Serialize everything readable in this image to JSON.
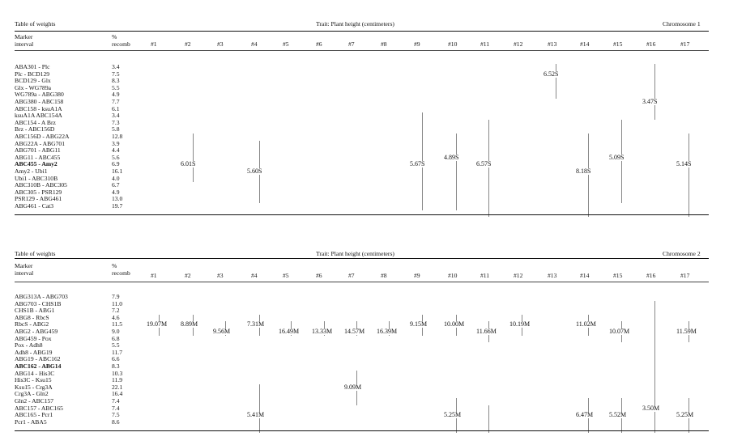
{
  "columns": [
    "#1",
    "#2",
    "#3",
    "#4",
    "#5",
    "#6",
    "#7",
    "#8",
    "#9",
    "#10",
    "#11",
    "#12",
    "#13",
    "#14",
    "#15",
    "#16",
    "#17"
  ],
  "tables": [
    {
      "title": "Table of weights",
      "trait": "Trait: Plant height (centimeters)",
      "chromosome": "Chromosome 1",
      "marker_header": [
        "Marker",
        "interval"
      ],
      "recomb_header": [
        "%",
        "recomb"
      ],
      "rows": [
        {
          "interval": "ABA301 - Plc",
          "recomb": "3.4",
          "bold": false
        },
        {
          "interval": "Plc - BCD129",
          "recomb": "7.5",
          "bold": false
        },
        {
          "interval": "BCD129 - Glx",
          "recomb": "8.3",
          "bold": false
        },
        {
          "interval": "Glx - WG789a",
          "recomb": "5.5",
          "bold": false
        },
        {
          "interval": "WG789a - ABG380",
          "recomb": "4.9",
          "bold": false
        },
        {
          "interval": "ABG380 - ABC158",
          "recomb": "7.7",
          "bold": false
        },
        {
          "interval": "ABC158 - ksuA1A",
          "recomb": "6.1",
          "bold": false
        },
        {
          "interval": "ksuA1A ABC154A",
          "recomb": "3.4",
          "bold": false
        },
        {
          "interval": "ABC154 - A Brz",
          "recomb": "7.3",
          "bold": false
        },
        {
          "interval": "Brz - ABC156D",
          "recomb": "5.8",
          "bold": false
        },
        {
          "interval": "ABC156D - ABG22A",
          "recomb": "12.8",
          "bold": false
        },
        {
          "interval": "ABG22A - ABG701",
          "recomb": "3.9",
          "bold": false
        },
        {
          "interval": "ABG701 - ABG11",
          "recomb": "4.4",
          "bold": false
        },
        {
          "interval": "ABG11 - ABC455",
          "recomb": "5.6",
          "bold": false
        },
        {
          "interval": "ABC455 - Amy2",
          "recomb": "6.9",
          "bold": true
        },
        {
          "interval": "Amy2 - Ubi1",
          "recomb": "16.1",
          "bold": false
        },
        {
          "interval": "Ubi1 - ABC310B",
          "recomb": "4.0",
          "bold": false
        },
        {
          "interval": "ABC310B - ABC305",
          "recomb": "6.7",
          "bold": false
        },
        {
          "interval": "ABC305 - PSR129",
          "recomb": "4.9",
          "bold": false
        },
        {
          "interval": "PSR129 - ABG461",
          "recomb": "13.0",
          "bold": false
        },
        {
          "interval": "ABG461 - Cat3",
          "recomb": "19.7",
          "bold": false
        }
      ],
      "entries": [
        {
          "col": 2,
          "row": 14,
          "label": "6.01S",
          "line_from": 10,
          "line_to": 16
        },
        {
          "col": 4,
          "row": 15,
          "label": "5.60S",
          "line_from": 11,
          "line_to": 19
        },
        {
          "col": 9,
          "row": 14,
          "label": "5.67S",
          "line_from": 7,
          "line_to": 20
        },
        {
          "col": 10,
          "row": 13,
          "label": "4.89S",
          "line_from": 10,
          "line_to": 20
        },
        {
          "col": 11,
          "row": 14,
          "label": "6.57S",
          "line_from": 8,
          "line_to": 21
        },
        {
          "col": 13,
          "row": 1,
          "label": "6.52S",
          "line_from": 0,
          "line_to": 4
        },
        {
          "col": 14,
          "row": 15,
          "label": "8.18S",
          "line_from": 10,
          "line_to": 21
        },
        {
          "col": 15,
          "row": 13,
          "label": "5.09S",
          "line_from": 8,
          "line_to": 19
        },
        {
          "col": 16,
          "row": 5,
          "label": "3.47S",
          "line_from": 0,
          "line_to": 7
        },
        {
          "col": 17,
          "row": 14,
          "label": "5.14S",
          "line_from": 10,
          "line_to": 21
        }
      ]
    },
    {
      "title": "Table of weights",
      "trait": "Trait: Plant height (centimeters)",
      "chromosome": "Chromosome 2",
      "marker_header": [
        "Marker",
        "interval"
      ],
      "recomb_header": [
        "%",
        "recomb"
      ],
      "rows": [
        {
          "interval": "ABG313A - ABG703",
          "recomb": "7.9",
          "bold": false
        },
        {
          "interval": "ABG703 - CHS1B",
          "recomb": "11.0",
          "bold": false
        },
        {
          "interval": "CHS1B - ABG1",
          "recomb": "7.2",
          "bold": false
        },
        {
          "interval": "ABG8 - RbcS",
          "recomb": "4.6",
          "bold": false
        },
        {
          "interval": "RbcS - ABG2",
          "recomb": "11.5",
          "bold": false
        },
        {
          "interval": "ABG2 - ABG459",
          "recomb": "9.0",
          "bold": false
        },
        {
          "interval": "ABG459 - Pox",
          "recomb": "6.8",
          "bold": false
        },
        {
          "interval": "Pox - Adh8",
          "recomb": "5.5",
          "bold": false
        },
        {
          "interval": "Adh8 - ABG19",
          "recomb": "11.7",
          "bold": false
        },
        {
          "interval": "ABG19 - ABC162",
          "recomb": "6.6",
          "bold": false
        },
        {
          "interval": "ABC162 - ABG14",
          "recomb": "8.3",
          "bold": true
        },
        {
          "interval": "ABG14 - His3C",
          "recomb": "10.3",
          "bold": false
        },
        {
          "interval": "His3C - Ksu15",
          "recomb": "11.9",
          "bold": false
        },
        {
          "interval": "Ksu15 - Crg3A",
          "recomb": "22.1",
          "bold": false
        },
        {
          "interval": "Crg3A - Gln2",
          "recomb": "16.4",
          "bold": false
        },
        {
          "interval": "Gln2 - ABC157",
          "recomb": "7.4",
          "bold": false
        },
        {
          "interval": "ABC157 - ABC165",
          "recomb": "7.4",
          "bold": false
        },
        {
          "interval": "ABC165 - Pcr1",
          "recomb": "7.5",
          "bold": false
        },
        {
          "interval": "Pcr1 - ABA5",
          "recomb": "8.6",
          "bold": false
        }
      ],
      "entries": [
        {
          "col": 1,
          "row": 4,
          "label": "19.07M",
          "line_from": 3,
          "line_to": 5
        },
        {
          "col": 2,
          "row": 4,
          "label": "8.89M",
          "line_from": 3,
          "line_to": 5
        },
        {
          "col": 3,
          "row": 5,
          "label": "9.56M",
          "line_from": 4,
          "line_to": 5
        },
        {
          "col": 4,
          "row": 4,
          "label": "7.31M",
          "line_from": 3,
          "line_to": 5
        },
        {
          "col": 5,
          "row": 5,
          "label": "16.49M",
          "line_from": 4,
          "line_to": 5
        },
        {
          "col": 6,
          "row": 5,
          "label": "13.33M",
          "line_from": 4,
          "line_to": 5
        },
        {
          "col": 7,
          "row": 5,
          "label": "14.57M",
          "line_from": 4,
          "line_to": 5
        },
        {
          "col": 8,
          "row": 5,
          "label": "16.39M",
          "line_from": 4,
          "line_to": 5
        },
        {
          "col": 9,
          "row": 4,
          "label": "9.15M",
          "line_from": 3,
          "line_to": 5
        },
        {
          "col": 10,
          "row": 4,
          "label": "10.00M",
          "line_from": 3,
          "line_to": 5
        },
        {
          "col": 11,
          "row": 5,
          "label": "11.66M",
          "line_from": 4,
          "line_to": 6
        },
        {
          "col": 12,
          "row": 4,
          "label": "10.19M",
          "line_from": 3,
          "line_to": 5
        },
        {
          "col": 14,
          "row": 4,
          "label": "11.02M",
          "line_from": 3,
          "line_to": 5
        },
        {
          "col": 15,
          "row": 5,
          "label": "10.07M",
          "line_from": 4,
          "line_to": 6
        },
        {
          "col": 16,
          "row": 16,
          "label": "3.50M",
          "line_from": 1,
          "line_to": 19
        },
        {
          "col": 17,
          "row": 5,
          "label": "11.59M",
          "line_from": 4,
          "line_to": 6
        },
        {
          "col": 4,
          "row": 17,
          "label": "5.41M",
          "line_from": 13,
          "line_to": 19
        },
        {
          "col": 7,
          "row": 13,
          "label": "9.09M",
          "line_from": 11,
          "line_to": 15
        },
        {
          "col": 10,
          "row": 17,
          "label": "5.25M",
          "line_from": 15,
          "line_to": 19
        },
        {
          "col": 11,
          "row": 17,
          "label": "",
          "line_from": 16,
          "line_to": 19
        },
        {
          "col": 14,
          "row": 17,
          "label": "6.47M",
          "line_from": 15,
          "line_to": 19
        },
        {
          "col": 15,
          "row": 17,
          "label": "5.52M",
          "line_from": 15,
          "line_to": 19
        },
        {
          "col": 17,
          "row": 17,
          "label": "5.25M",
          "line_from": 15,
          "line_to": 19
        }
      ]
    }
  ]
}
